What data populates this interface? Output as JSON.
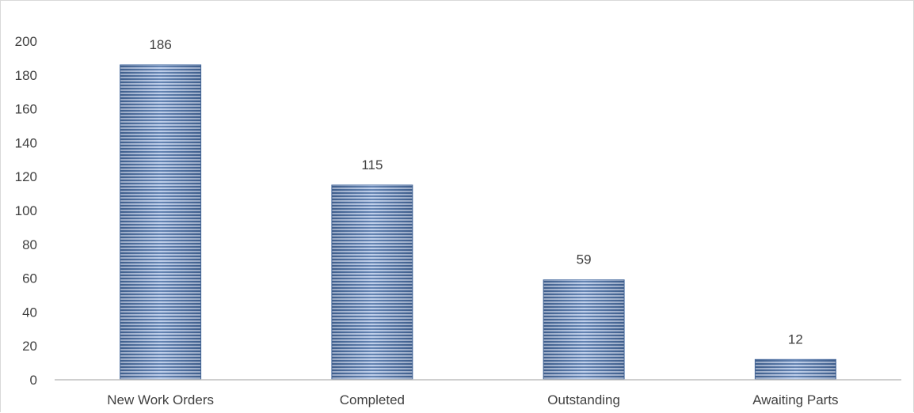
{
  "chart_data": {
    "type": "bar",
    "title": "",
    "xlabel": "",
    "ylabel": "",
    "categories": [
      "New Work Orders",
      "Completed",
      "Outstanding",
      "Awaiting Parts"
    ],
    "values": [
      186,
      115,
      59,
      12
    ],
    "data_labels": [
      "186",
      "115",
      "59",
      "12"
    ],
    "y_ticks": [
      "0",
      "20",
      "40",
      "60",
      "80",
      "100",
      "120",
      "140",
      "160",
      "180",
      "200"
    ],
    "ylim": [
      0,
      200
    ],
    "grid": false,
    "legend": "none",
    "colors": {
      "bar_light": "#b4c7e7",
      "bar_dark": "#4a6fa5",
      "axis": "#bfbfbf",
      "text": "#404040"
    }
  }
}
